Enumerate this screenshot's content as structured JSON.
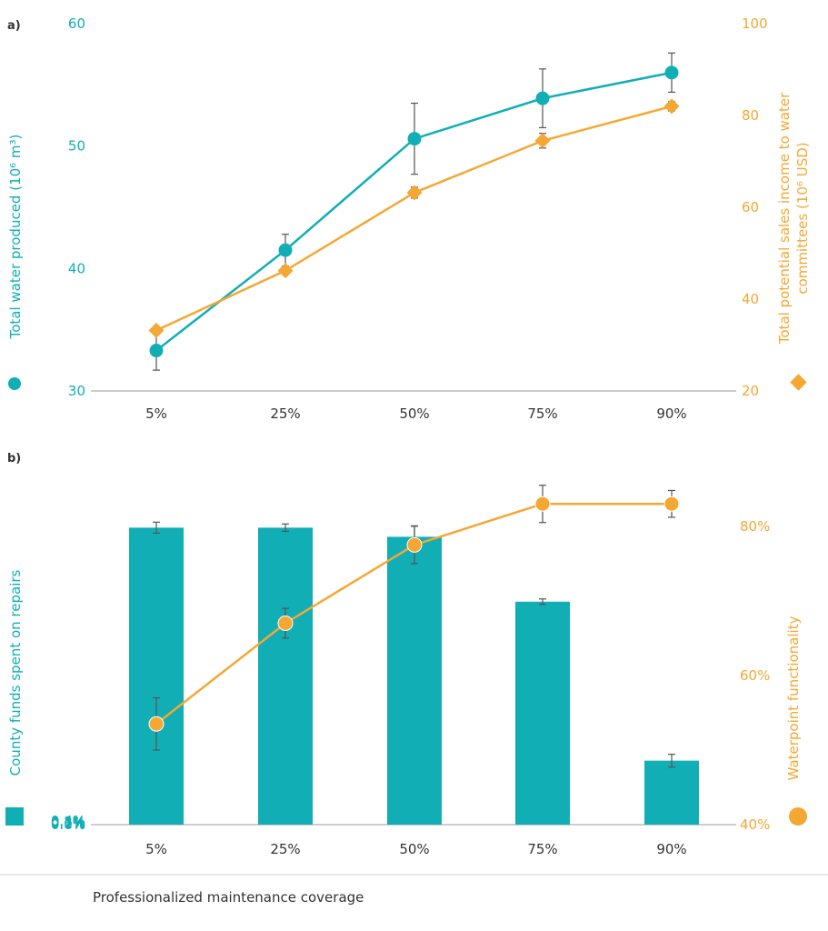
{
  "colors": {
    "teal": "#12aeb6",
    "orange": "#f5a733",
    "axis": "#9a9a9a",
    "text": "#333333",
    "error": "#555555"
  },
  "xlabel": "Professionalized maintenance coverage",
  "chart_data": [
    {
      "type": "line",
      "panel_label": "a)",
      "categories": [
        "5%",
        "25%",
        "50%",
        "75%",
        "90%"
      ],
      "y_left": {
        "label": "Total water produced (10⁶ m³)",
        "ticks": [
          "30",
          "40",
          "50",
          "60"
        ],
        "range": [
          30,
          60
        ]
      },
      "y_right": {
        "label_line1": "Total potential sales income to water",
        "label_line2": "committees (10⁶ USD)",
        "ticks": [
          "20",
          "40",
          "60",
          "80",
          "100"
        ],
        "range": [
          20,
          100
        ]
      },
      "series": [
        {
          "axis": "left",
          "marker": "circle",
          "values": [
            33.3,
            41.5,
            50.6,
            53.9,
            56.0
          ],
          "err": [
            1.6,
            1.3,
            2.9,
            2.4,
            1.6
          ]
        },
        {
          "axis": "right",
          "marker": "diamond",
          "values": [
            33.2,
            46.2,
            63.2,
            74.5,
            82.0
          ],
          "err": [
            0,
            0.5,
            1.2,
            1.6,
            1.0
          ]
        }
      ]
    },
    {
      "type": "bar",
      "panel_label": "b)",
      "categories": [
        "5%",
        "25%",
        "50%",
        "75%",
        "90%"
      ],
      "y_left": {
        "label": "County funds spent on repairs",
        "ticks": [
          "0.0%",
          "0.1%",
          "0.2%",
          "0.3%",
          "0.4%"
        ],
        "range": [
          0,
          0.4
        ]
      },
      "y_right": {
        "label": "Waterpoint functionality",
        "ticks": [
          "40%",
          "60%",
          "80%"
        ],
        "range": [
          40,
          89
        ]
      },
      "series": [
        {
          "type": "bar",
          "axis": "left",
          "values": [
            0.325,
            0.325,
            0.315,
            0.244,
            0.07
          ],
          "err": [
            0.006,
            0.004,
            0.012,
            0.003,
            0.007
          ]
        },
        {
          "type": "line",
          "axis": "right",
          "marker": "circle",
          "values": [
            53.5,
            67,
            77.5,
            83,
            83
          ],
          "err": [
            3.5,
            2,
            2.5,
            2.5,
            1.8
          ]
        }
      ]
    }
  ]
}
